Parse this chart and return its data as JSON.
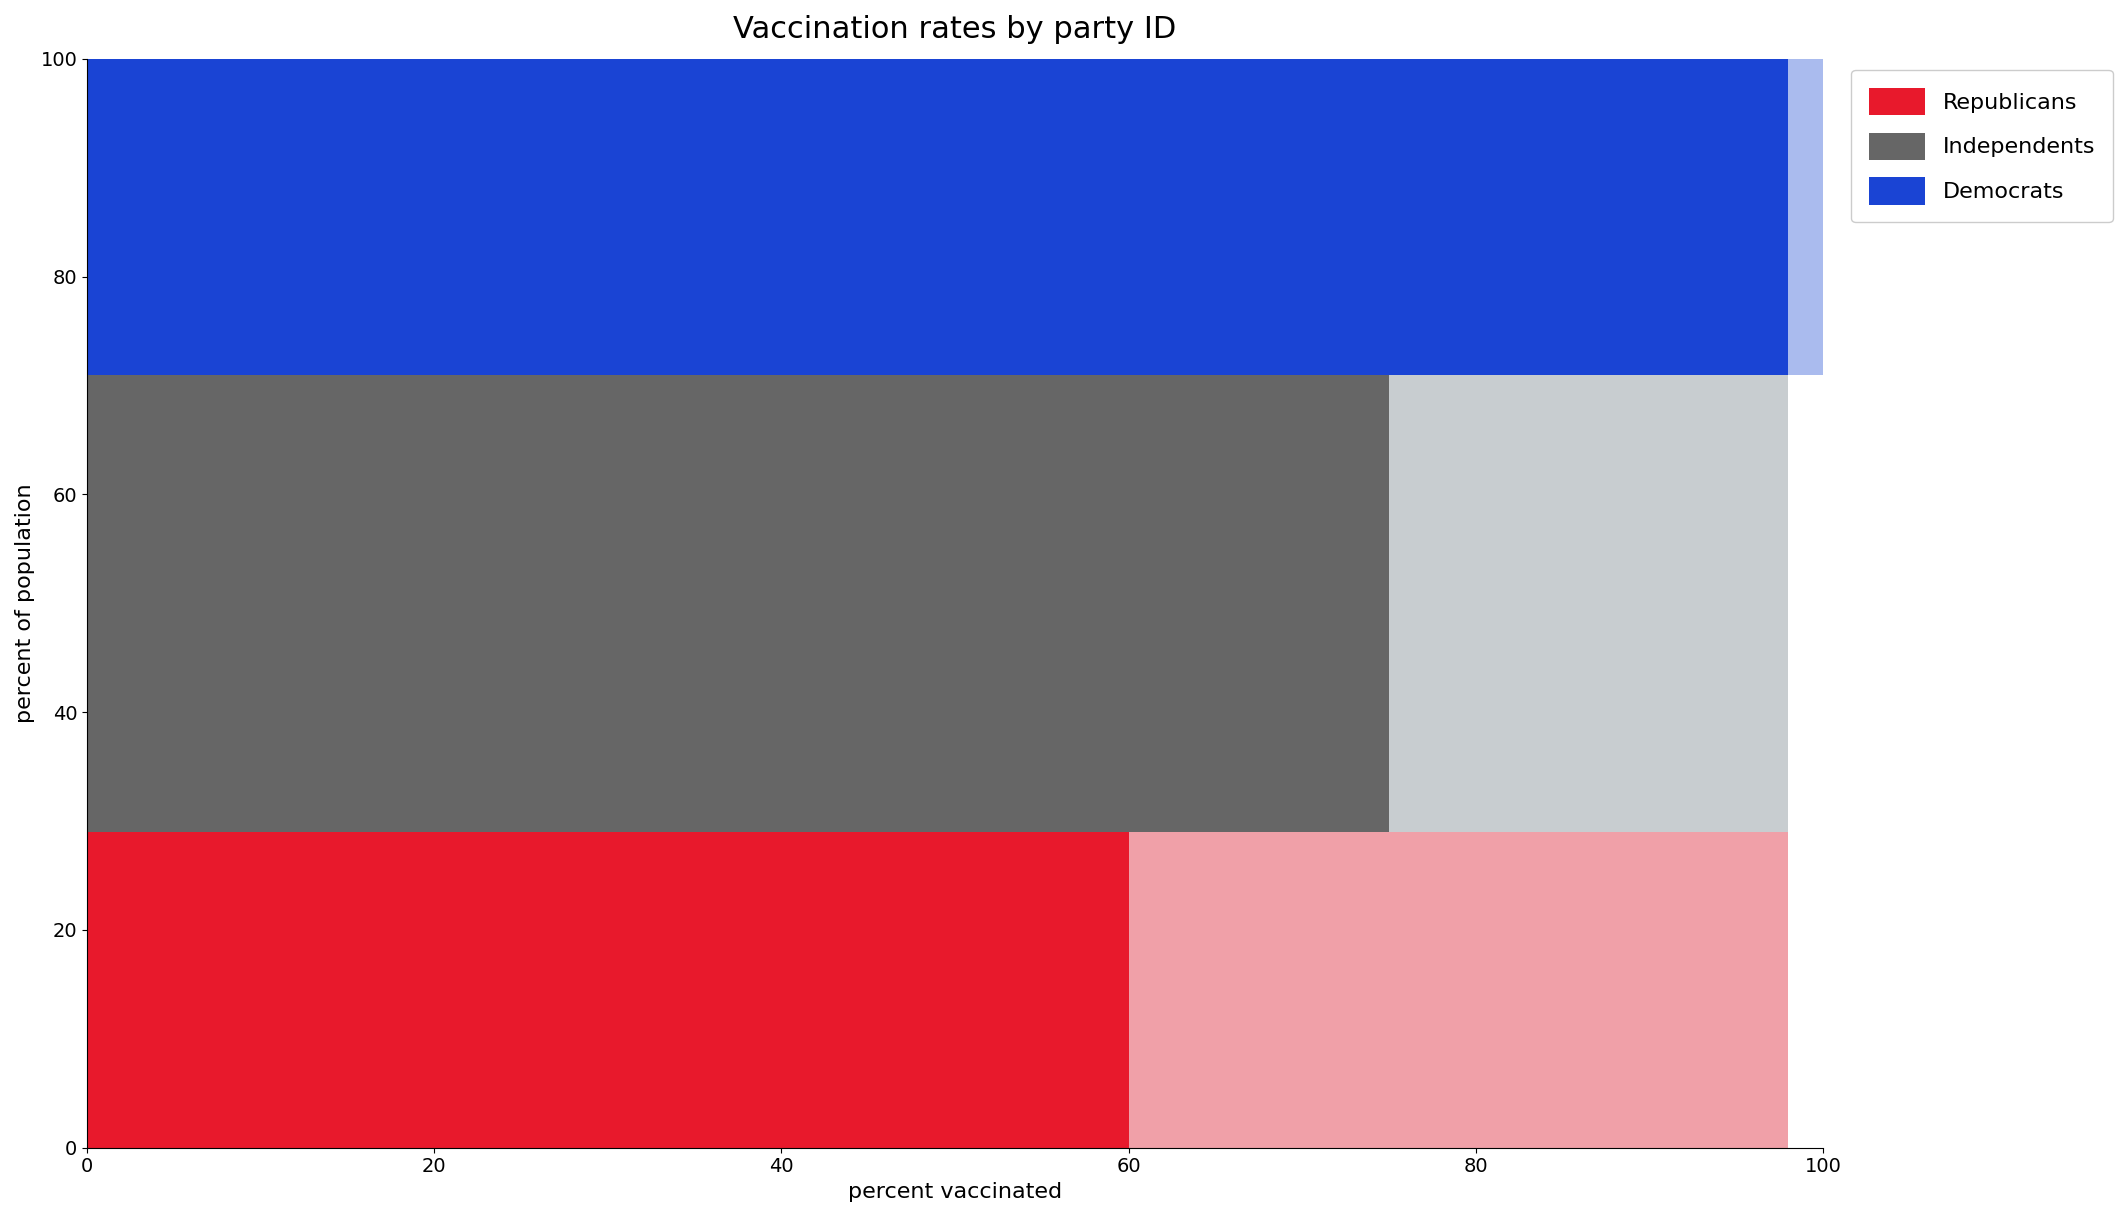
{
  "title": "Vaccination rates by party ID",
  "xlabel": "percent vaccinated",
  "ylabel": "percent of population",
  "xlim": [
    0,
    100
  ],
  "ylim": [
    0,
    100
  ],
  "xticks": [
    0,
    20,
    40,
    60,
    80,
    100
  ],
  "yticks": [
    0,
    20,
    40,
    60,
    80,
    100
  ],
  "parties": [
    {
      "name": "Republicans",
      "y_bottom": 0,
      "y_height": 29,
      "vacc_x_end": 60,
      "unvacc_x_end": 98,
      "color_vacc": "#e8192c",
      "color_unvacc": "#f0a0a8"
    },
    {
      "name": "Independents",
      "y_bottom": 29,
      "y_height": 42,
      "vacc_x_end": 75,
      "unvacc_x_end": 98,
      "color_vacc": "#666666",
      "color_unvacc": "#c8cdd0"
    },
    {
      "name": "Democrats",
      "y_bottom": 71,
      "y_height": 29,
      "vacc_x_end": 98,
      "unvacc_x_end": 100,
      "color_vacc": "#1a44d4",
      "color_unvacc": "#aabbee"
    }
  ],
  "legend": {
    "republicans_color": "#e8192c",
    "independents_color": "#666666",
    "democrats_color": "#1a44d4",
    "labels": [
      "Republicans",
      "Independents",
      "Democrats"
    ]
  },
  "background_color": "#ffffff",
  "title_fontsize": 22,
  "label_fontsize": 16,
  "tick_fontsize": 14
}
